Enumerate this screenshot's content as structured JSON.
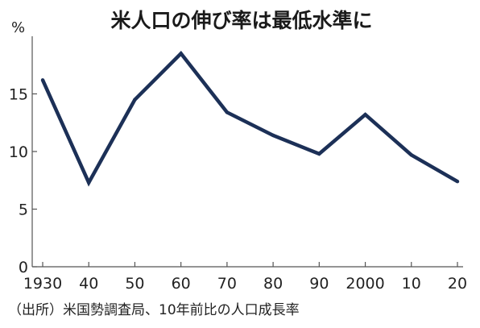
{
  "chart_data": {
    "type": "line",
    "title": "米人口の伸び率は最低水準に",
    "ylabel": "%",
    "xlabel": "",
    "categories": [
      "1930",
      "40",
      "50",
      "60",
      "70",
      "80",
      "90",
      "2000",
      "10",
      "20"
    ],
    "x": [
      1930,
      1940,
      1950,
      1960,
      1970,
      1980,
      1990,
      2000,
      2010,
      2020
    ],
    "series": [
      {
        "values": [
          16.2,
          7.3,
          14.5,
          18.5,
          13.4,
          11.4,
          9.8,
          13.2,
          9.7,
          7.4
        ]
      }
    ],
    "ylim": [
      0,
      20
    ],
    "yticks": [
      0,
      5,
      10,
      15
    ],
    "grid": false,
    "line_color": "#1c3057",
    "source": "（出所）米国勢調査局、10年前比の人口成長率"
  }
}
